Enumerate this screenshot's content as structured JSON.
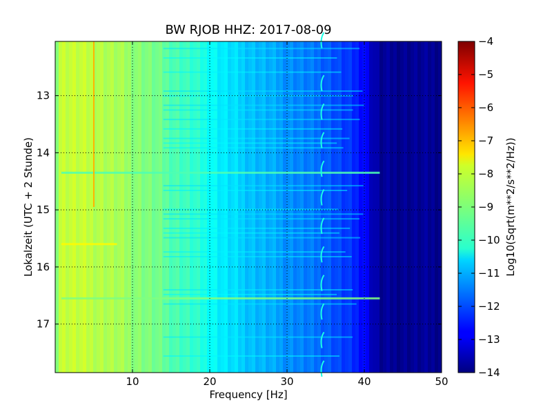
{
  "chart_data": {
    "type": "heatmap",
    "title": "BW RJOB HHZ: 2017-08-09",
    "xlabel": "Frequency [Hz]",
    "ylabel": "Lokalzeit (UTC + 2 Stunde)",
    "xlim": [
      0,
      50
    ],
    "ylim": [
      17.85,
      12.05
    ],
    "y_inverted": true,
    "x_ticks": [
      10,
      20,
      30,
      40,
      50
    ],
    "x_tick_labels": [
      "10",
      "20",
      "30",
      "40",
      "50"
    ],
    "y_ticks": [
      13,
      14,
      15,
      16,
      17
    ],
    "y_tick_labels": [
      "13",
      "14",
      "15",
      "16",
      "17"
    ],
    "grid": true,
    "colormap": "jet",
    "colorbar": {
      "label": "Log10(Sqrt(m**2/s**2/Hz))",
      "range": [
        -14,
        -4
      ],
      "ticks": [
        -4,
        -5,
        -6,
        -7,
        -8,
        -9,
        -10,
        -11,
        -12,
        -13,
        -14
      ],
      "tick_labels": [
        "−4",
        "−5",
        "−6",
        "−7",
        "−8",
        "−9",
        "−10",
        "−11",
        "−12",
        "−13",
        "−14"
      ]
    },
    "spectral_profile": {
      "freq_hz": [
        0,
        0.5,
        2,
        5,
        8,
        10,
        12,
        15,
        18,
        20,
        22,
        25,
        28,
        30,
        32,
        35,
        38,
        40,
        41,
        42,
        50
      ],
      "log10_amplitude": [
        -9.1,
        -8.3,
        -8.3,
        -8.4,
        -8.6,
        -8.8,
        -9.0,
        -9.4,
        -9.8,
        -10.1,
        -10.5,
        -10.8,
        -11.1,
        -11.3,
        -11.5,
        -11.8,
        -12.3,
        -12.6,
        -13.4,
        -13.8,
        -13.8
      ]
    },
    "features": {
      "vertical_line_freq_hz": 5,
      "vertical_line_time_range": [
        12.05,
        14.95
      ],
      "hourly_tone_freq_hz": 34.6,
      "hourly_tone_times": [
        12.05,
        12.8,
        13.3,
        13.8,
        14.3,
        14.8,
        15.3,
        15.8,
        16.3,
        16.8,
        17.3,
        17.8
      ],
      "broadband_events": [
        {
          "time": 14.35,
          "max_freq_hz": 42,
          "level": -9.5
        },
        {
          "time": 16.55,
          "max_freq_hz": 42,
          "level": -9.0
        },
        {
          "time": 15.6,
          "max_freq_hz": 8,
          "level": -7.7
        }
      ]
    }
  }
}
